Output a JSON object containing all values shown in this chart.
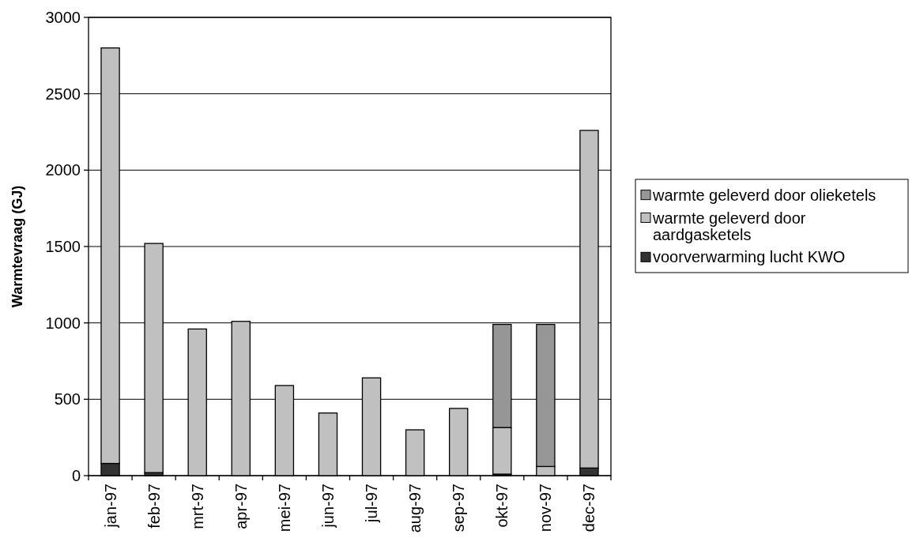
{
  "chart_data": {
    "type": "bar",
    "stacked": true,
    "ylabel": "Warmtevraag (GJ)",
    "categories": [
      "jan-97",
      "feb-97",
      "mrt-97",
      "apr-97",
      "mei-97",
      "jun-97",
      "jul-97",
      "aug-97",
      "sep-97",
      "okt-97",
      "nov-97",
      "dec-97"
    ],
    "series": [
      {
        "name": "voorverwarming lucht KWO",
        "color": "#333333",
        "values": [
          80,
          20,
          null,
          null,
          null,
          null,
          null,
          null,
          null,
          10,
          null,
          50
        ]
      },
      {
        "name": "warmte geleverd door aardgasketels",
        "color": "#c0c0c0",
        "values": [
          2720,
          1500,
          960,
          1010,
          590,
          410,
          640,
          300,
          440,
          305,
          60,
          2210
        ]
      },
      {
        "name": "warmte geleverd door olieketels",
        "color": "#969696",
        "values": [
          null,
          null,
          null,
          null,
          null,
          null,
          null,
          null,
          null,
          675,
          930,
          null
        ]
      }
    ],
    "ylim": [
      0,
      3000
    ],
    "yticks": [
      0,
      500,
      1000,
      1500,
      2000,
      2500,
      3000
    ],
    "grid": "y",
    "legend": "right"
  }
}
